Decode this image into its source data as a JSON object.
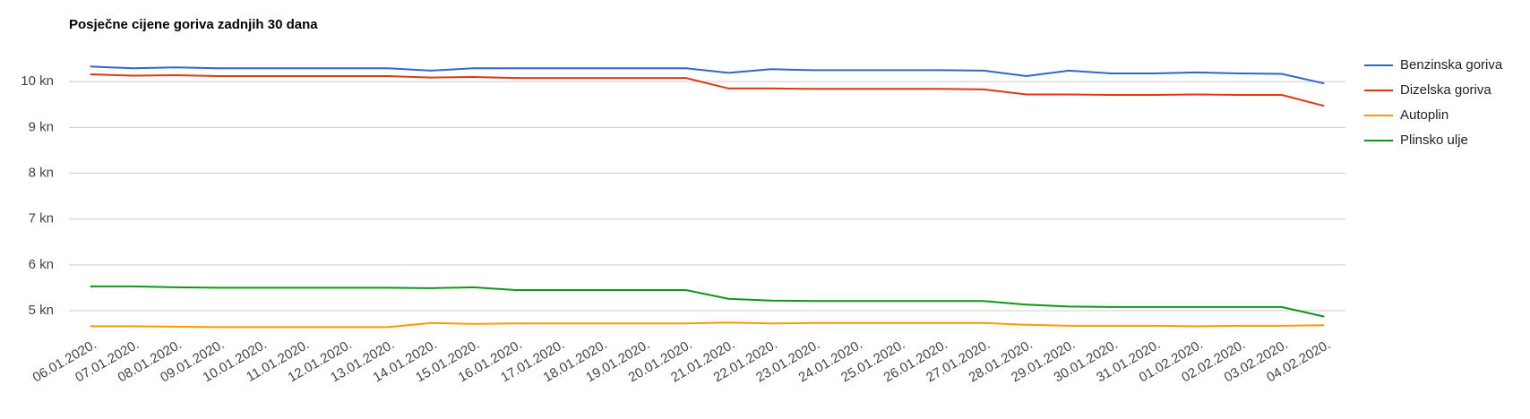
{
  "chart_data": {
    "type": "line",
    "title": "Posječne cijene goriva zadnjih 30 dana",
    "categories": [
      "06.01.2020.",
      "07.01.2020.",
      "08.01.2020.",
      "09.01.2020.",
      "10.01.2020.",
      "11.01.2020.",
      "12.01.2020.",
      "13.01.2020.",
      "14.01.2020.",
      "15.01.2020.",
      "16.01.2020.",
      "17.01.2020.",
      "18.01.2020.",
      "19.01.2020.",
      "20.01.2020.",
      "21.01.2020.",
      "22.01.2020.",
      "23.01.2020.",
      "24.01.2020.",
      "25.01.2020.",
      "26.01.2020.",
      "27.01.2020.",
      "28.01.2020.",
      "29.01.2020.",
      "30.01.2020.",
      "31.01.2020.",
      "01.02.2020.",
      "02.02.2020.",
      "03.02.2020.",
      "04.02.2020."
    ],
    "series": [
      {
        "name": "Benzinska goriva",
        "color": "#3366cc",
        "values": [
          10.33,
          10.29,
          10.31,
          10.29,
          10.29,
          10.29,
          10.29,
          10.29,
          10.24,
          10.29,
          10.29,
          10.29,
          10.29,
          10.29,
          10.29,
          10.19,
          10.27,
          10.25,
          10.25,
          10.25,
          10.25,
          10.24,
          10.12,
          10.24,
          10.18,
          10.18,
          10.2,
          10.18,
          10.17,
          9.96
        ]
      },
      {
        "name": "Dizelska goriva",
        "color": "#dc3912",
        "values": [
          10.16,
          10.13,
          10.14,
          10.12,
          10.12,
          10.12,
          10.12,
          10.12,
          10.09,
          10.1,
          10.08,
          10.08,
          10.08,
          10.08,
          10.08,
          9.85,
          9.85,
          9.84,
          9.84,
          9.84,
          9.84,
          9.83,
          9.72,
          9.72,
          9.71,
          9.71,
          9.72,
          9.71,
          9.71,
          9.47
        ]
      },
      {
        "name": "Autoplin",
        "color": "#ff9900",
        "values": [
          4.66,
          4.66,
          4.65,
          4.64,
          4.64,
          4.64,
          4.64,
          4.64,
          4.73,
          4.71,
          4.72,
          4.72,
          4.72,
          4.72,
          4.72,
          4.74,
          4.72,
          4.73,
          4.73,
          4.73,
          4.73,
          4.73,
          4.69,
          4.67,
          4.67,
          4.67,
          4.66,
          4.67,
          4.67,
          4.68
        ]
      },
      {
        "name": "Plinsko ulje",
        "color": "#109618",
        "values": [
          5.53,
          5.53,
          5.51,
          5.5,
          5.5,
          5.5,
          5.5,
          5.5,
          5.49,
          5.51,
          5.45,
          5.45,
          5.45,
          5.45,
          5.45,
          5.26,
          5.22,
          5.21,
          5.21,
          5.21,
          5.21,
          5.21,
          5.13,
          5.09,
          5.08,
          5.08,
          5.08,
          5.08,
          5.08,
          4.87
        ]
      }
    ],
    "ylim": [
      4.55,
      11
    ],
    "yticks": [
      {
        "value": 5,
        "label": "5 kn"
      },
      {
        "value": 6,
        "label": "6 kn"
      },
      {
        "value": 7,
        "label": "7 kn"
      },
      {
        "value": 8,
        "label": "8 kn"
      },
      {
        "value": 9,
        "label": "9 kn"
      },
      {
        "value": 10,
        "label": "10 kn"
      }
    ],
    "grid": true,
    "legend": "right"
  }
}
